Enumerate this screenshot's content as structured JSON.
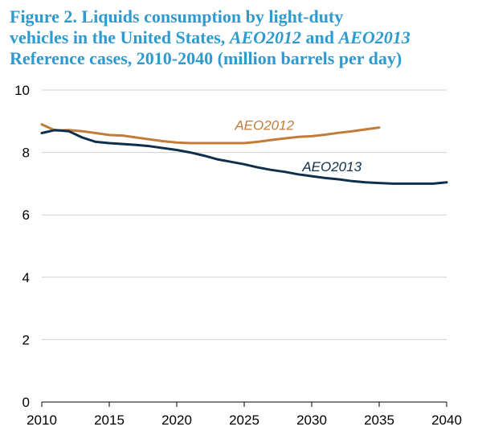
{
  "title": {
    "line1": "Figure 2. Liquids consumption by light-duty",
    "line2_a": "vehicles in the United States, ",
    "line2_b": "AEO2012",
    "line2_c": " and ",
    "line2_d": "AEO2013",
    "line3": "Reference cases, 2010-2040 (million barrels per day)"
  },
  "colors": {
    "title": "#2e9ad0",
    "AEO2012": "#c27c3a",
    "AEO2013": "#0f2f4a",
    "grid": "#d0d0d0"
  },
  "chart_data": {
    "type": "line",
    "title": "Figure 2. Liquids consumption by light-duty vehicles in the United States, AEO2012 and AEO2013 Reference cases, 2010-2040 (million barrels per day)",
    "xlabel": "",
    "ylabel": "",
    "xlim": [
      2010,
      2040
    ],
    "ylim": [
      0,
      10
    ],
    "xticks": [
      2010,
      2015,
      2020,
      2025,
      2030,
      2035,
      2040
    ],
    "yticks": [
      0,
      2,
      4,
      6,
      8,
      10
    ],
    "grid": "horizontal",
    "legend": "inline labels",
    "series": [
      {
        "name": "AEO2012",
        "x": [
          2010,
          2011,
          2012,
          2013,
          2014,
          2015,
          2016,
          2017,
          2018,
          2019,
          2020,
          2021,
          2022,
          2023,
          2024,
          2025,
          2026,
          2027,
          2028,
          2029,
          2030,
          2031,
          2032,
          2033,
          2034,
          2035
        ],
        "values": [
          8.9,
          8.7,
          8.72,
          8.68,
          8.62,
          8.56,
          8.54,
          8.48,
          8.42,
          8.36,
          8.32,
          8.3,
          8.3,
          8.3,
          8.3,
          8.3,
          8.34,
          8.4,
          8.45,
          8.5,
          8.52,
          8.57,
          8.63,
          8.68,
          8.74,
          8.8
        ]
      },
      {
        "name": "AEO2013",
        "x": [
          2010,
          2011,
          2012,
          2013,
          2014,
          2015,
          2016,
          2017,
          2018,
          2019,
          2020,
          2021,
          2022,
          2023,
          2024,
          2025,
          2026,
          2027,
          2028,
          2029,
          2030,
          2031,
          2032,
          2033,
          2034,
          2035,
          2036,
          2037,
          2038,
          2039,
          2040
        ],
        "values": [
          8.62,
          8.72,
          8.68,
          8.48,
          8.34,
          8.3,
          8.27,
          8.24,
          8.2,
          8.14,
          8.08,
          8.0,
          7.9,
          7.78,
          7.7,
          7.62,
          7.52,
          7.44,
          7.38,
          7.3,
          7.24,
          7.18,
          7.14,
          7.08,
          7.04,
          7.02,
          7.0,
          7.0,
          7.0,
          7.0,
          7.04
        ]
      }
    ],
    "annotations": [
      {
        "text": "AEO2012",
        "series": "AEO2012",
        "x": 2026.5,
        "y": 8.72
      },
      {
        "text": "AEO2013",
        "series": "AEO2013",
        "x": 2031.5,
        "y": 7.4
      }
    ]
  }
}
